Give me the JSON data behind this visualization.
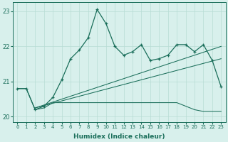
{
  "title": "",
  "xlabel": "Humidex (Indice chaleur)",
  "bg_color": "#d8f0ec",
  "grid_color": "#b8dcd4",
  "line_color": "#1a6e5a",
  "xlim": [
    -0.5,
    23.5
  ],
  "ylim": [
    19.85,
    23.25
  ],
  "xticks": [
    0,
    1,
    2,
    3,
    4,
    5,
    6,
    7,
    8,
    9,
    10,
    11,
    12,
    13,
    14,
    15,
    16,
    17,
    18,
    19,
    20,
    21,
    22,
    23
  ],
  "yticks": [
    20,
    21,
    22,
    23
  ],
  "line1_y": [
    20.8,
    20.8,
    20.2,
    20.3,
    20.55,
    21.05,
    21.65,
    21.9,
    22.25,
    23.05,
    22.65,
    22.0,
    21.75,
    21.85,
    22.05,
    21.6,
    21.65,
    21.75,
    22.05,
    22.05,
    21.85,
    22.05,
    21.6,
    20.85
  ],
  "line2_y": [
    20.8,
    20.8,
    20.2,
    20.25,
    20.4,
    20.4,
    20.4,
    20.4,
    20.4,
    20.4,
    20.4,
    20.4,
    20.4,
    20.4,
    20.4,
    20.4,
    20.4,
    20.4,
    20.4,
    20.3,
    20.2,
    20.15,
    20.15,
    20.15
  ],
  "line3_x": [
    2,
    23
  ],
  "line3_y": [
    20.25,
    21.65
  ],
  "line4_x": [
    2,
    23
  ],
  "line4_y": [
    20.25,
    22.0
  ],
  "xlabel_fontsize": 6.5,
  "xlabel_fontweight": "bold",
  "xtick_fontsize": 5.0,
  "ytick_fontsize": 6.0
}
